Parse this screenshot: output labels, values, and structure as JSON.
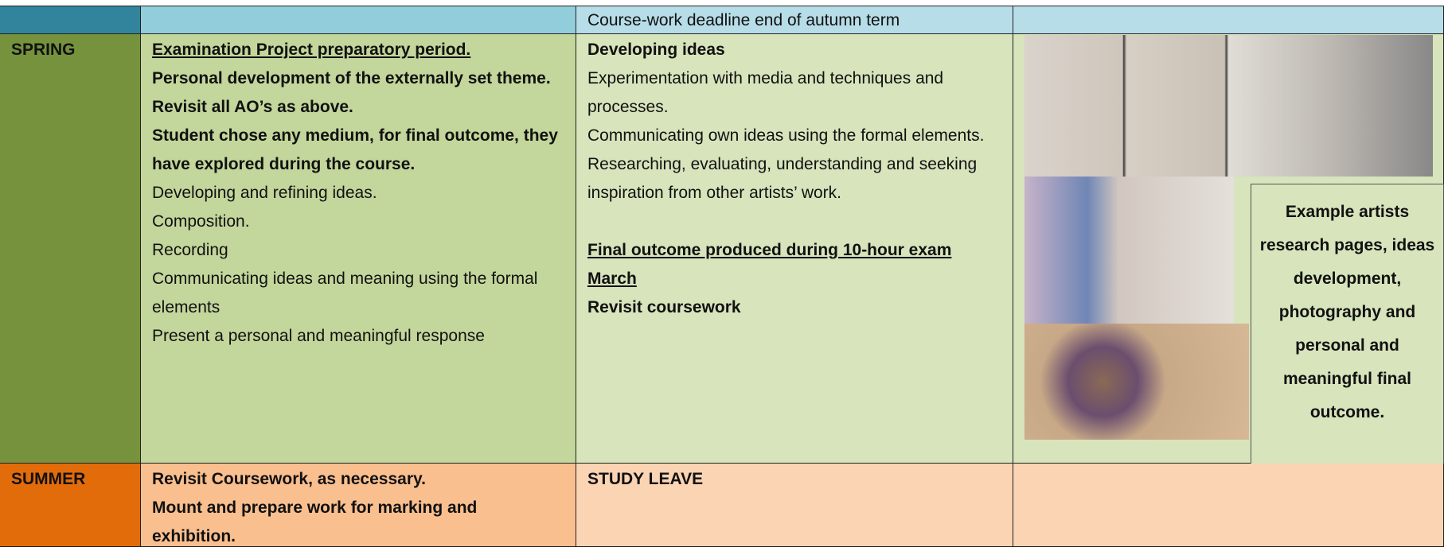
{
  "table": {
    "rows": [
      {
        "cells": [
          [],
          [],
          [
            "Course-work deadline end of autumn term"
          ],
          []
        ]
      },
      {
        "cells": [
          [
            "SPRING"
          ],
          [
            "Examination Project preparatory period.",
            "Personal development of the externally set theme.",
            "Revisit all AO’s as above.",
            "Student chose any medium, for final outcome, they have explored during the course.",
            "Developing and refining ideas.",
            "Composition.",
            "Recording",
            "Communicating ideas and meaning using the formal elements",
            "Present a personal and meaningful response"
          ],
          [
            "Developing ideas",
            "Experimentation with media and techniques and processes.",
            "Communicating own ideas using the formal elements.",
            "Researching, evaluating, understanding and seeking inspiration from other artists’ work.",
            "Final outcome produced during 10-hour exam",
            "March",
            "Revisit coursework"
          ],
          []
        ]
      },
      {
        "cells": [
          [
            "SUMMER"
          ],
          [
            "Revisit Coursework, as necessary.",
            "Mount and prepare work for marking and exhibition."
          ],
          [
            "STUDY LEAVE"
          ],
          []
        ]
      }
    ]
  },
  "image_caption": "Example artists research pages, ideas development, photography and personal and meaningful final outcome."
}
